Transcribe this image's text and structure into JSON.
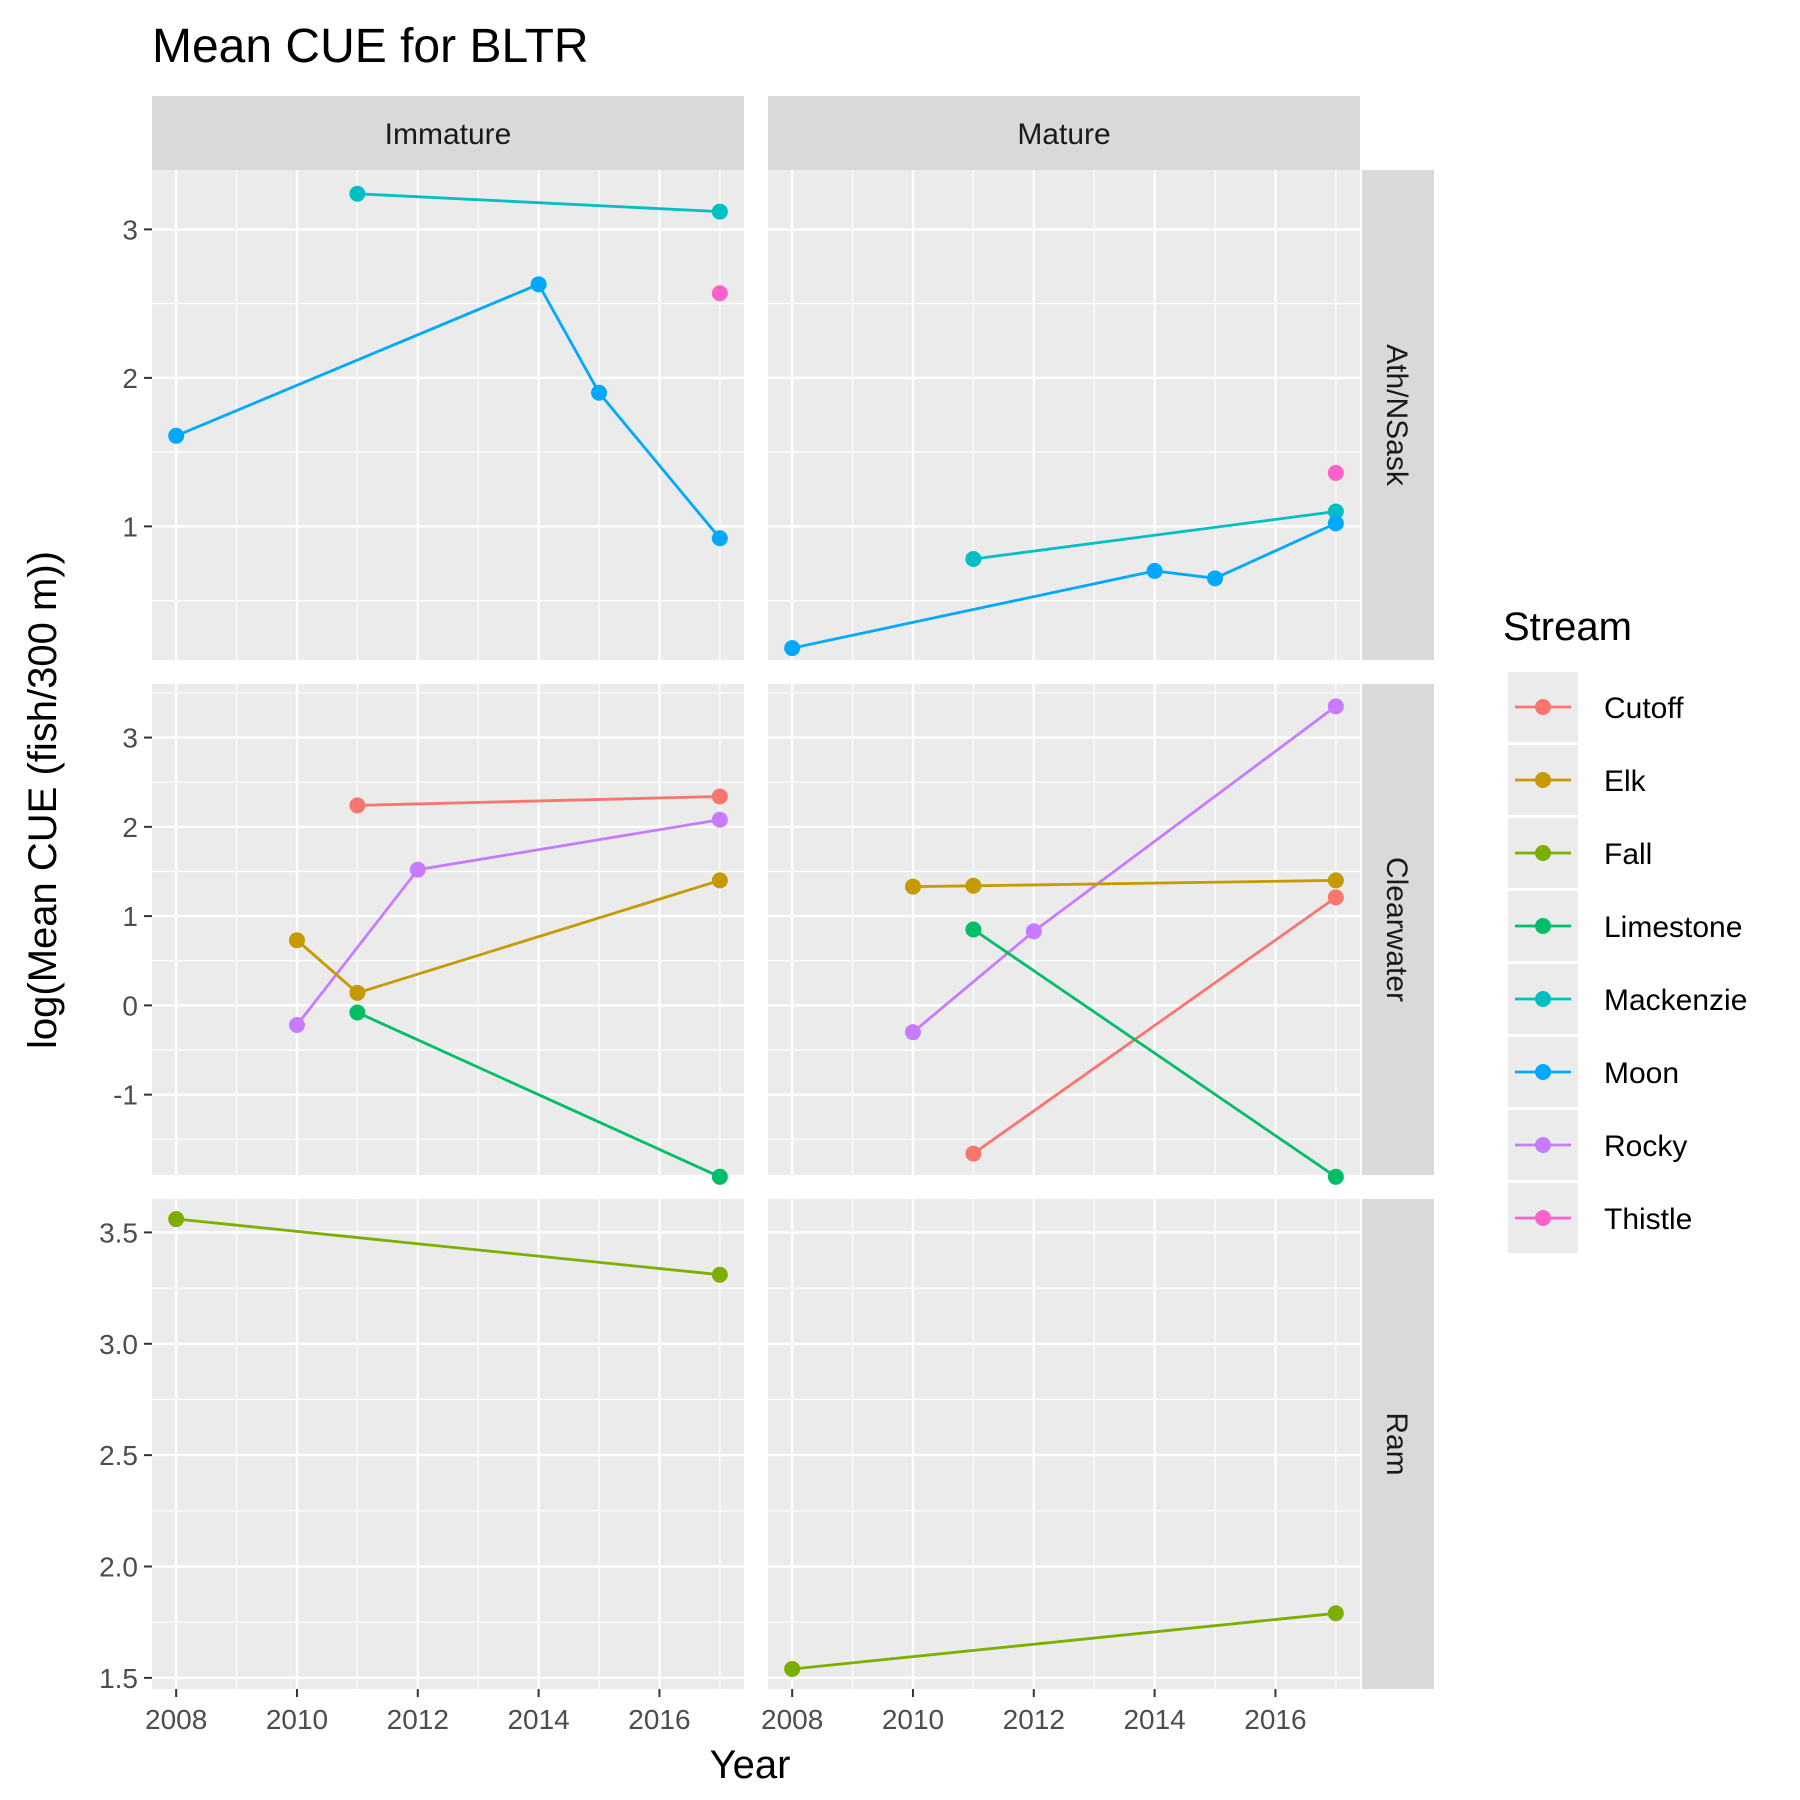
{
  "chart_data": {
    "type": "line",
    "title": "Mean CUE for BLTR",
    "xlabel": "Year",
    "ylabel": "log(Mean CUE (fish/300 m))",
    "xlim": [
      2007.6,
      2017.4
    ],
    "x_ticks": [
      "2008",
      "2010",
      "2012",
      "2014",
      "2016"
    ],
    "columns": [
      "Immature",
      "Mature"
    ],
    "rows": [
      {
        "name": "Ath/NSask",
        "ylim": [
          0.1,
          3.4
        ],
        "y_ticks": [
          "1",
          "2",
          "3"
        ]
      },
      {
        "name": "Clearwater",
        "ylim": [
          -1.9,
          3.6
        ],
        "y_ticks": [
          "-1",
          "0",
          "1",
          "2",
          "3"
        ]
      },
      {
        "name": "Ram",
        "ylim": [
          1.45,
          3.65
        ],
        "y_ticks": [
          "1.5",
          "2.0",
          "2.5",
          "3.0",
          "3.5"
        ]
      }
    ],
    "legend": {
      "title": "Stream",
      "position": "right",
      "entries": [
        {
          "name": "Cutoff",
          "color": "#F8766D"
        },
        {
          "name": "Elk",
          "color": "#C49A00"
        },
        {
          "name": "Fall",
          "color": "#7CAE00"
        },
        {
          "name": "Limestone",
          "color": "#00BE67"
        },
        {
          "name": "Mackenzie",
          "color": "#00BFC4"
        },
        {
          "name": "Moon",
          "color": "#00A9FF"
        },
        {
          "name": "Rocky",
          "color": "#C77CFF"
        },
        {
          "name": "Thistle",
          "color": "#FF61CC"
        }
      ]
    },
    "series": [
      {
        "name": "Mackenzie",
        "row": 0,
        "col": 0,
        "x": [
          2011,
          2017
        ],
        "y": [
          3.24,
          3.12
        ]
      },
      {
        "name": "Moon",
        "row": 0,
        "col": 0,
        "x": [
          2008,
          2014,
          2015,
          2017
        ],
        "y": [
          1.61,
          2.63,
          1.9,
          0.92
        ]
      },
      {
        "name": "Thistle",
        "row": 0,
        "col": 0,
        "x": [
          2017
        ],
        "y": [
          2.57
        ]
      },
      {
        "name": "Mackenzie",
        "row": 0,
        "col": 1,
        "x": [
          2011,
          2017
        ],
        "y": [
          0.78,
          1.1
        ]
      },
      {
        "name": "Moon",
        "row": 0,
        "col": 1,
        "x": [
          2008,
          2014,
          2015,
          2017
        ],
        "y": [
          0.18,
          0.7,
          0.65,
          1.02
        ]
      },
      {
        "name": "Thistle",
        "row": 0,
        "col": 1,
        "x": [
          2017
        ],
        "y": [
          1.36
        ]
      },
      {
        "name": "Cutoff",
        "row": 1,
        "col": 0,
        "x": [
          2011,
          2017
        ],
        "y": [
          2.24,
          2.34
        ]
      },
      {
        "name": "Rocky",
        "row": 1,
        "col": 0,
        "x": [
          2010,
          2012,
          2017
        ],
        "y": [
          -0.22,
          1.52,
          2.08
        ]
      },
      {
        "name": "Elk",
        "row": 1,
        "col": 0,
        "x": [
          2010,
          2011,
          2017
        ],
        "y": [
          0.73,
          0.14,
          1.4
        ]
      },
      {
        "name": "Limestone",
        "row": 1,
        "col": 0,
        "x": [
          2011,
          2017
        ],
        "y": [
          -0.08,
          -1.92
        ]
      },
      {
        "name": "Rocky",
        "row": 1,
        "col": 1,
        "x": [
          2010,
          2012,
          2017
        ],
        "y": [
          -0.3,
          0.83,
          3.35
        ]
      },
      {
        "name": "Elk",
        "row": 1,
        "col": 1,
        "x": [
          2010,
          2011,
          2017
        ],
        "y": [
          1.33,
          1.34,
          1.4
        ]
      },
      {
        "name": "Cutoff",
        "row": 1,
        "col": 1,
        "x": [
          2011,
          2017
        ],
        "y": [
          -1.66,
          1.21
        ]
      },
      {
        "name": "Limestone",
        "row": 1,
        "col": 1,
        "x": [
          2011,
          2017
        ],
        "y": [
          0.85,
          -1.92
        ]
      },
      {
        "name": "Fall",
        "row": 2,
        "col": 0,
        "x": [
          2008,
          2017
        ],
        "y": [
          3.56,
          3.31
        ]
      },
      {
        "name": "Fall",
        "row": 2,
        "col": 1,
        "x": [
          2008,
          2017
        ],
        "y": [
          1.54,
          1.79
        ]
      }
    ]
  }
}
